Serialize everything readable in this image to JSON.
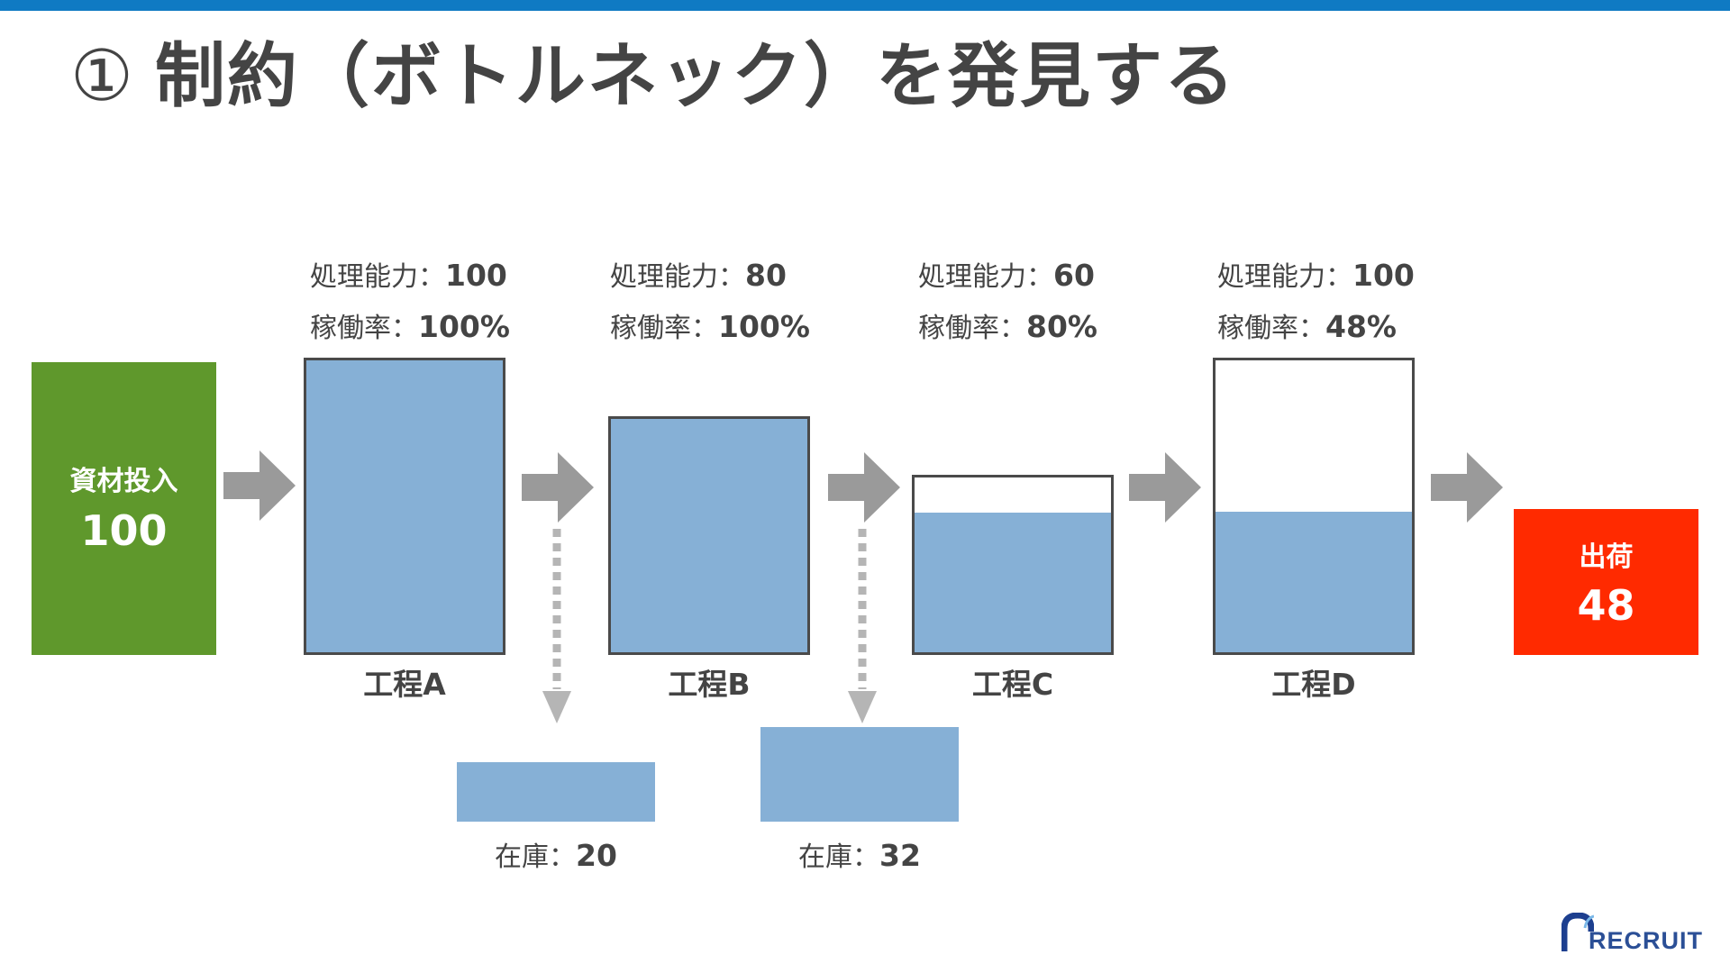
{
  "title": {
    "number": "①",
    "text": "制約（ボトルネック）を発見する"
  },
  "input": {
    "label": "資材投入",
    "value": "100"
  },
  "shipment": {
    "label": "出荷",
    "value": "48"
  },
  "capacity_label": "処理能力：",
  "utilization_label": "稼働率：",
  "processes": [
    {
      "name": "工程A",
      "capacity": "100",
      "utilization": "100%",
      "utilization_ratio": 1.0
    },
    {
      "name": "工程B",
      "capacity": "80",
      "utilization": "100%",
      "utilization_ratio": 1.0
    },
    {
      "name": "工程C",
      "capacity": "60",
      "utilization": "80%",
      "utilization_ratio": 0.8
    },
    {
      "name": "工程D",
      "capacity": "100",
      "utilization": "48%",
      "utilization_ratio": 0.48
    }
  ],
  "inventory_label": "在庫：",
  "inventories": [
    {
      "value": "20"
    },
    {
      "value": "32"
    }
  ],
  "logo": {
    "text": "RECRUIT"
  },
  "colors": {
    "top_bar": "#0f7ac3",
    "input": "#5f982c",
    "shipment": "#ff2a00",
    "fill": "#86b0d6",
    "arrow": "#9a9a9a"
  }
}
